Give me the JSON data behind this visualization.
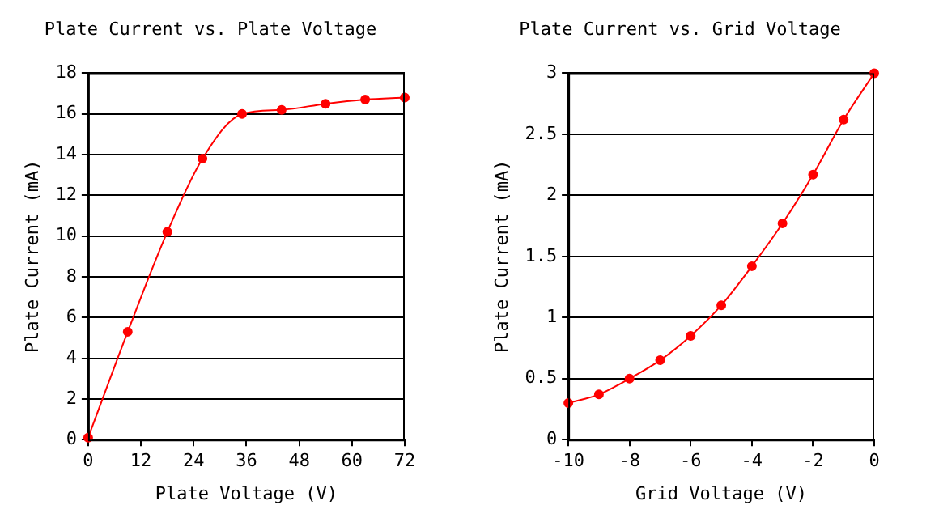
{
  "chart_data": [
    {
      "type": "line",
      "title": "Plate Current vs. Plate Voltage",
      "xlabel": "Plate Voltage (V)",
      "ylabel": "Plate Current (mA)",
      "x": [
        0,
        9,
        18,
        26,
        35,
        44,
        54,
        63,
        72
      ],
      "series": [
        {
          "color": "#ff0000",
          "values": [
            0.1,
            5.3,
            10.2,
            13.8,
            16.0,
            16.2,
            16.5,
            16.7,
            16.8
          ]
        }
      ],
      "xlim": [
        0,
        72
      ],
      "xticks": [
        0,
        12,
        24,
        36,
        48,
        60,
        72
      ],
      "ylim": [
        0,
        18
      ],
      "yticks": [
        0,
        2,
        4,
        6,
        8,
        10,
        12,
        14,
        16,
        18
      ],
      "grid": "y",
      "marker": "circle",
      "line_style": "solid",
      "legend": false
    },
    {
      "type": "line",
      "title": "Plate Current vs. Grid Voltage",
      "xlabel": "Grid Voltage (V)",
      "ylabel": "Plate Current (mA)",
      "x": [
        -10,
        -9,
        -8,
        -7,
        -6,
        -5,
        -4,
        -3,
        -2,
        -1,
        0
      ],
      "series": [
        {
          "color": "#ff0000",
          "values": [
            0.3,
            0.37,
            0.5,
            0.65,
            0.85,
            1.1,
            1.42,
            1.77,
            2.17,
            2.62,
            3.0
          ]
        }
      ],
      "xlim": [
        -10,
        0
      ],
      "xticks": [
        -10,
        -8,
        -6,
        -4,
        -2,
        0
      ],
      "ylim": [
        0,
        3
      ],
      "yticks": [
        0,
        0.5,
        1,
        1.5,
        2,
        2.5,
        3
      ],
      "grid": "y",
      "marker": "circle",
      "line_style": "solid",
      "legend": false
    }
  ]
}
